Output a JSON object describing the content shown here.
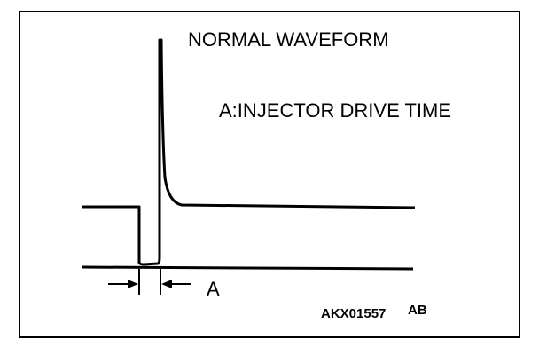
{
  "title": "NORMAL WAVEFORM",
  "legend": "A:INJECTOR DRIVE TIME",
  "dimension_label": "A",
  "figure_code": "AKX01557",
  "figure_suffix": "AB"
}
